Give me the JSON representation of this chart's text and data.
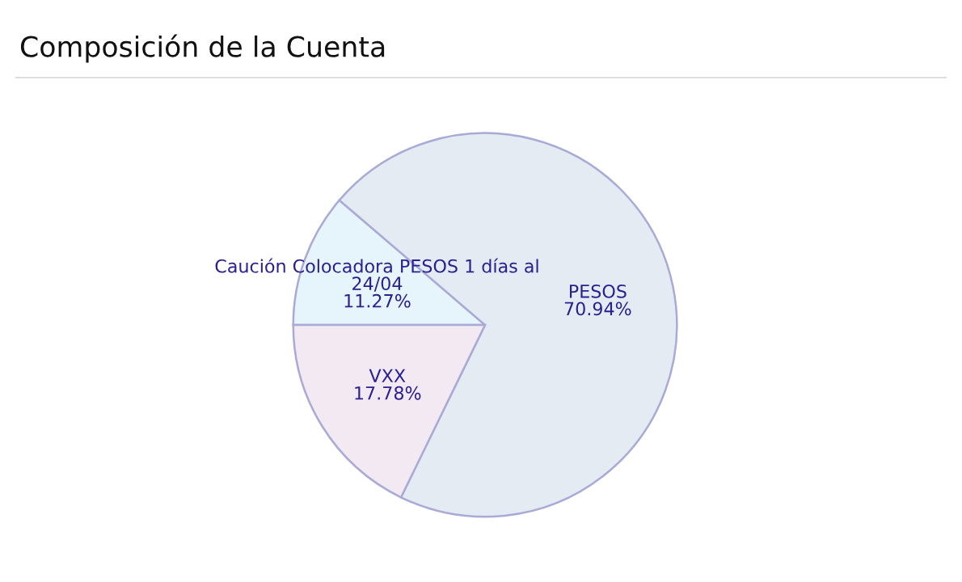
{
  "chart_data": {
    "type": "pie",
    "title": "Composición de la Cuenta",
    "categories": [
      "Caución Colocadora PESOS 1 días al 24/04",
      "PESOS",
      "VXX"
    ],
    "values": [
      11.27,
      70.94,
      17.78
    ],
    "colors": [
      "#e6f4fb",
      "#e5ebf2",
      "#f2e9f3"
    ],
    "value_labels": [
      "11.27%",
      "70.94%",
      "17.78%"
    ],
    "legend": false
  }
}
